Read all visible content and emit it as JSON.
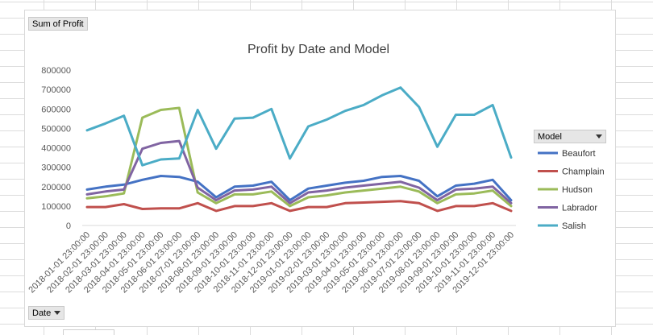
{
  "pivot": {
    "value_field": "Sum of Profit",
    "axis_field": "Date",
    "legend_field": "Model"
  },
  "chart_data": {
    "type": "line",
    "title": "Profit by Date and Model",
    "xlabel": "",
    "ylabel": "",
    "ylim": [
      0,
      800000
    ],
    "yticks": [
      "0",
      "100000",
      "200000",
      "300000",
      "400000",
      "500000",
      "600000",
      "700000",
      "800000"
    ],
    "grid": false,
    "legend_placement": "right",
    "categories": [
      "2018-01-01 23:00:00",
      "2018-02-01 23:00:00",
      "2018-03-01 23:00:00",
      "2018-04-01 23:00:00",
      "2018-05-01 23:00:00",
      "2018-06-01 23:00:00",
      "2018-07-01 23:00:00",
      "2018-08-01 23:00:00",
      "2018-09-01 23:00:00",
      "2018-10-01 23:00:00",
      "2018-11-01 23:00:00",
      "2018-12-01 23:00:00",
      "2019-01-01 23:00:00",
      "2019-02-01 23:00:00",
      "2019-03-01 23:00:00",
      "2019-04-01 23:00:00",
      "2019-05-01 23:00:00",
      "2019-06-01 23:00:00",
      "2019-07-01 23:00:00",
      "2019-08-01 23:00:00",
      "2019-09-01 23:00:00",
      "2019-10-01 23:00:00",
      "2019-11-01 23:00:00",
      "2019-12-01 23:00:00"
    ],
    "series": [
      {
        "name": "Beaufort",
        "color": "#4472c4",
        "values": [
          185000,
          200000,
          210000,
          235000,
          255000,
          250000,
          225000,
          145000,
          200000,
          205000,
          225000,
          130000,
          190000,
          205000,
          220000,
          230000,
          250000,
          255000,
          230000,
          150000,
          205000,
          215000,
          235000,
          130000
        ]
      },
      {
        "name": "Champlain",
        "color": "#c0504d",
        "values": [
          95000,
          95000,
          110000,
          85000,
          88000,
          88000,
          115000,
          75000,
          100000,
          100000,
          115000,
          75000,
          95000,
          95000,
          115000,
          118000,
          122000,
          125000,
          115000,
          75000,
          100000,
          100000,
          115000,
          75000
        ]
      },
      {
        "name": "Hudson",
        "color": "#9bbb59",
        "values": [
          140000,
          150000,
          165000,
          555000,
          595000,
          605000,
          170000,
          115000,
          160000,
          160000,
          175000,
          100000,
          145000,
          155000,
          170000,
          180000,
          190000,
          200000,
          175000,
          115000,
          160000,
          165000,
          180000,
          100000
        ]
      },
      {
        "name": "Labrador",
        "color": "#8064a2",
        "values": [
          160000,
          175000,
          185000,
          395000,
          425000,
          435000,
          195000,
          130000,
          180000,
          185000,
          200000,
          115000,
          170000,
          180000,
          195000,
          205000,
          215000,
          225000,
          195000,
          130000,
          185000,
          190000,
          200000,
          115000
        ]
      },
      {
        "name": "Salish",
        "color": "#4bacc6",
        "values": [
          490000,
          525000,
          565000,
          310000,
          340000,
          345000,
          595000,
          395000,
          550000,
          555000,
          600000,
          345000,
          510000,
          545000,
          590000,
          620000,
          670000,
          710000,
          610000,
          405000,
          570000,
          570000,
          620000,
          350000
        ]
      }
    ]
  }
}
